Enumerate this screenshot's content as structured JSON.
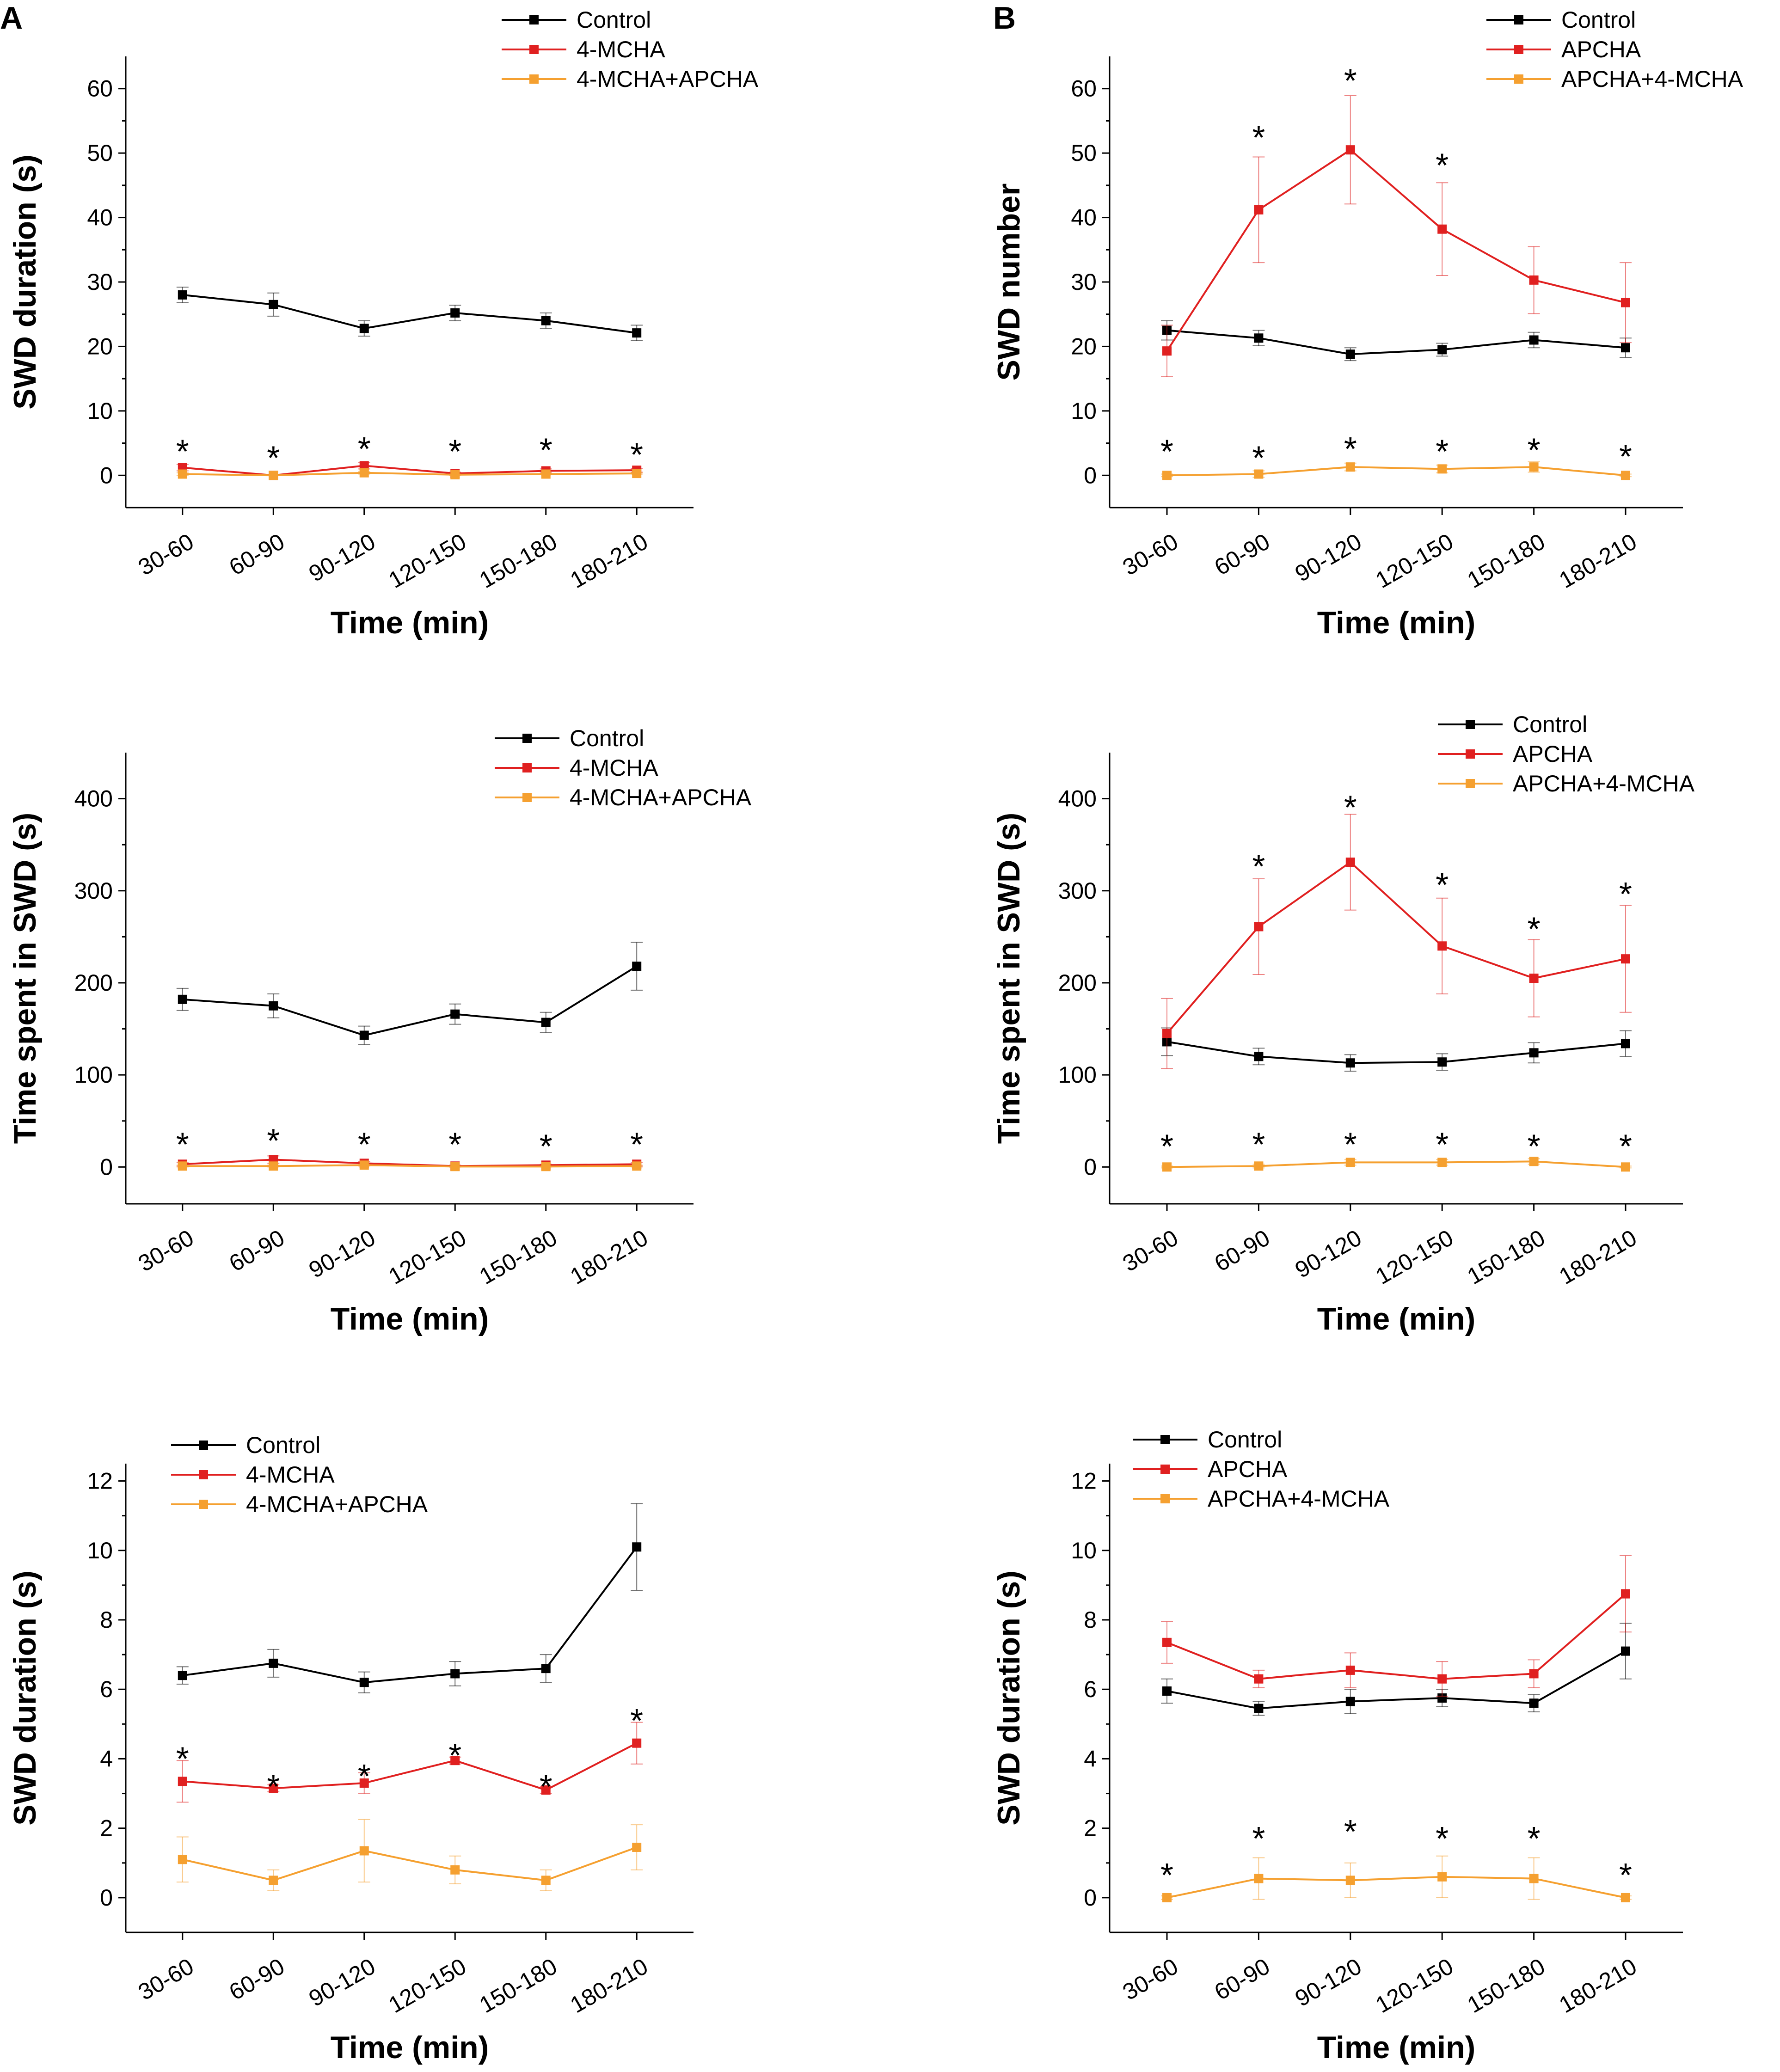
{
  "panel_labels": [
    "A",
    "B"
  ],
  "colors": {
    "control": "#000000",
    "red": "#e02020",
    "orange": "#f5a030"
  },
  "chart_data": [
    {
      "type": "line",
      "panel": "A",
      "title": "",
      "xlabel": "Time (min)",
      "ylabel": "SWD duration (s)",
      "categories": [
        "30-60",
        "60-90",
        "90-120",
        "120-150",
        "150-180",
        "180-210"
      ],
      "ylim": [
        -5,
        65
      ],
      "yticks": [
        0,
        10,
        20,
        30,
        40,
        50,
        60
      ],
      "series": [
        {
          "name": "Control",
          "color": "#000000",
          "values": [
            28,
            26.5,
            22.8,
            25.2,
            24,
            22.1
          ],
          "errors": [
            1.2,
            1.8,
            1.2,
            1.2,
            1.2,
            1.2
          ]
        },
        {
          "name": "4-MCHA",
          "color": "#e02020",
          "values": [
            1.2,
            0,
            1.5,
            0.3,
            0.7,
            0.8
          ],
          "errors": [
            0.5,
            0,
            0.5,
            0.2,
            0.3,
            0.3
          ]
        },
        {
          "name": "4-MCHA+APCHA",
          "color": "#f5a030",
          "values": [
            0.2,
            0,
            0.4,
            0.1,
            0.2,
            0.3
          ],
          "errors": [
            0.2,
            0,
            0.2,
            0.1,
            0.1,
            0.1
          ]
        }
      ],
      "annotations": [
        {
          "text": "*",
          "x": 0,
          "y": 4.8
        },
        {
          "text": "*",
          "x": 1,
          "y": 3.8
        },
        {
          "text": "*",
          "x": 2,
          "y": 5.2
        },
        {
          "text": "*",
          "x": 3,
          "y": 4.8
        },
        {
          "text": "*",
          "x": 4,
          "y": 5.0
        },
        {
          "text": "*",
          "x": 5,
          "y": 4.3
        }
      ]
    },
    {
      "type": "line",
      "panel": "B",
      "title": "",
      "xlabel": "Time (min)",
      "ylabel": "SWD number",
      "categories": [
        "30-60",
        "60-90",
        "90-120",
        "120-150",
        "150-180",
        "180-210"
      ],
      "ylim": [
        -5,
        65
      ],
      "yticks": [
        0,
        10,
        20,
        30,
        40,
        50,
        60
      ],
      "series": [
        {
          "name": "Control",
          "color": "#000000",
          "values": [
            22.5,
            21.3,
            18.8,
            19.5,
            21,
            19.8
          ],
          "errors": [
            1.5,
            1.2,
            1,
            1,
            1.2,
            1.5
          ]
        },
        {
          "name": "APCHA",
          "color": "#e02020",
          "values": [
            19.3,
            41.2,
            50.5,
            38.2,
            30.3,
            26.8
          ],
          "errors": [
            4,
            8.2,
            8.4,
            7.2,
            5.2,
            6.2
          ]
        },
        {
          "name": "APCHA+4-MCHA",
          "color": "#f5a030",
          "values": [
            0,
            0.2,
            1.3,
            1,
            1.3,
            0
          ],
          "errors": [
            0.2,
            0.5,
            0.6,
            0.6,
            0.8,
            0.2
          ]
        }
      ],
      "annotations": [
        {
          "text": "*",
          "x": 0,
          "y": 4.8
        },
        {
          "text": "*",
          "x": 1,
          "y": 3.8
        },
        {
          "text": "*",
          "x": 2,
          "y": 5.2
        },
        {
          "text": "*",
          "x": 3,
          "y": 4.8
        },
        {
          "text": "*",
          "x": 4,
          "y": 5.0
        },
        {
          "text": "*",
          "x": 5,
          "y": 4.0
        },
        {
          "text": "*",
          "x": 1,
          "y": 53.5
        },
        {
          "text": "*",
          "x": 2,
          "y": 62.3
        },
        {
          "text": "*",
          "x": 3,
          "y": 49.2
        }
      ]
    },
    {
      "type": "line",
      "panel": "A",
      "title": "",
      "xlabel": "Time (min)",
      "ylabel": "Time spent in SWD (s)",
      "categories": [
        "30-60",
        "60-90",
        "90-120",
        "120-150",
        "150-180",
        "180-210"
      ],
      "ylim": [
        -40,
        450
      ],
      "yticks": [
        0,
        100,
        200,
        300,
        400
      ],
      "series": [
        {
          "name": "Control",
          "color": "#000000",
          "values": [
            182,
            175,
            143,
            166,
            157,
            218
          ],
          "errors": [
            12,
            13,
            10,
            11,
            11,
            26
          ]
        },
        {
          "name": "4-MCHA",
          "color": "#e02020",
          "values": [
            3,
            8,
            4,
            1,
            2,
            3
          ],
          "errors": [
            2,
            4,
            2,
            1,
            1,
            2
          ]
        },
        {
          "name": "4-MCHA+APCHA",
          "color": "#f5a030",
          "values": [
            1,
            1,
            2,
            0.5,
            0.5,
            1
          ],
          "errors": [
            1,
            1,
            1,
            0.5,
            0.5,
            1
          ]
        }
      ],
      "annotations": [
        {
          "text": "*",
          "x": 0,
          "y": 32
        },
        {
          "text": "*",
          "x": 1,
          "y": 36
        },
        {
          "text": "*",
          "x": 2,
          "y": 32
        },
        {
          "text": "*",
          "x": 3,
          "y": 32
        },
        {
          "text": "*",
          "x": 4,
          "y": 30
        },
        {
          "text": "*",
          "x": 5,
          "y": 32
        }
      ]
    },
    {
      "type": "line",
      "panel": "B",
      "title": "",
      "xlabel": "Time (min)",
      "ylabel": "Time spent in SWD (s)",
      "categories": [
        "30-60",
        "60-90",
        "90-120",
        "120-150",
        "150-180",
        "180-210"
      ],
      "ylim": [
        -40,
        450
      ],
      "yticks": [
        0,
        100,
        200,
        300,
        400
      ],
      "series": [
        {
          "name": "Control",
          "color": "#000000",
          "values": [
            136,
            120,
            113,
            114,
            124,
            134
          ],
          "errors": [
            15,
            9,
            9,
            9,
            11,
            14
          ]
        },
        {
          "name": "APCHA",
          "color": "#e02020",
          "values": [
            145,
            261,
            331,
            240,
            205,
            226
          ],
          "errors": [
            38,
            52,
            52,
            52,
            42,
            58
          ]
        },
        {
          "name": "APCHA+4-MCHA",
          "color": "#f5a030",
          "values": [
            0,
            1,
            5,
            5,
            6,
            0
          ],
          "errors": [
            1,
            2,
            3,
            3,
            3,
            1
          ]
        }
      ],
      "annotations": [
        {
          "text": "*",
          "x": 0,
          "y": 30
        },
        {
          "text": "*",
          "x": 1,
          "y": 32
        },
        {
          "text": "*",
          "x": 2,
          "y": 32
        },
        {
          "text": "*",
          "x": 3,
          "y": 32
        },
        {
          "text": "*",
          "x": 4,
          "y": 30
        },
        {
          "text": "*",
          "x": 5,
          "y": 30
        },
        {
          "text": "*",
          "x": 1,
          "y": 334
        },
        {
          "text": "*",
          "x": 2,
          "y": 398
        },
        {
          "text": "*",
          "x": 3,
          "y": 314
        },
        {
          "text": "*",
          "x": 4,
          "y": 266
        },
        {
          "text": "*",
          "x": 5,
          "y": 304
        }
      ]
    },
    {
      "type": "line",
      "panel": "A",
      "title": "",
      "xlabel": "Time (min)",
      "ylabel": "SWD duration (s)",
      "categories": [
        "30-60",
        "60-90",
        "90-120",
        "120-150",
        "150-180",
        "180-210"
      ],
      "ylim": [
        -1,
        12.5
      ],
      "yticks": [
        0,
        2,
        4,
        6,
        8,
        10,
        12
      ],
      "series": [
        {
          "name": "Control",
          "color": "#000000",
          "values": [
            6.4,
            6.75,
            6.2,
            6.45,
            6.6,
            10.1
          ],
          "errors": [
            0.25,
            0.4,
            0.3,
            0.35,
            0.4,
            1.25
          ]
        },
        {
          "name": "4-MCHA",
          "color": "#e02020",
          "values": [
            3.35,
            3.15,
            3.3,
            3.95,
            3.1,
            4.45
          ],
          "errors": [
            0.6,
            0.1,
            0.3,
            0.1,
            0.1,
            0.6
          ]
        },
        {
          "name": "4-MCHA+APCHA",
          "color": "#f5a030",
          "values": [
            1.1,
            0.5,
            1.35,
            0.8,
            0.5,
            1.45
          ],
          "errors": [
            0.65,
            0.3,
            0.9,
            0.4,
            0.3,
            0.65
          ]
        }
      ],
      "annotations": [
        {
          "text": "*",
          "x": 0,
          "y": 4.2
        },
        {
          "text": "*",
          "x": 1,
          "y": 3.4
        },
        {
          "text": "*",
          "x": 2,
          "y": 3.7
        },
        {
          "text": "*",
          "x": 3,
          "y": 4.3
        },
        {
          "text": "*",
          "x": 4,
          "y": 3.4
        },
        {
          "text": "*",
          "x": 5,
          "y": 5.3
        }
      ]
    },
    {
      "type": "line",
      "panel": "B",
      "title": "",
      "xlabel": "Time (min)",
      "ylabel": "SWD duration (s)",
      "categories": [
        "30-60",
        "60-90",
        "90-120",
        "120-150",
        "150-180",
        "180-210"
      ],
      "ylim": [
        -1,
        12.5
      ],
      "yticks": [
        0,
        2,
        4,
        6,
        8,
        10,
        12
      ],
      "series": [
        {
          "name": "Control",
          "color": "#000000",
          "values": [
            5.95,
            5.45,
            5.65,
            5.75,
            5.6,
            7.1
          ],
          "errors": [
            0.35,
            0.2,
            0.35,
            0.25,
            0.25,
            0.8
          ]
        },
        {
          "name": "APCHA",
          "color": "#e02020",
          "values": [
            7.35,
            6.3,
            6.55,
            6.3,
            6.45,
            8.75
          ],
          "errors": [
            0.6,
            0.25,
            0.5,
            0.5,
            0.4,
            1.1
          ]
        },
        {
          "name": "APCHA+4-MCHA",
          "color": "#f5a030",
          "values": [
            0,
            0.55,
            0.5,
            0.6,
            0.55,
            0
          ],
          "errors": [
            0.05,
            0.6,
            0.5,
            0.6,
            0.6,
            0.05
          ]
        }
      ],
      "annotations": [
        {
          "text": "*",
          "x": 0,
          "y": 0.85
        },
        {
          "text": "*",
          "x": 1,
          "y": 1.9
        },
        {
          "text": "*",
          "x": 2,
          "y": 2.1
        },
        {
          "text": "*",
          "x": 3,
          "y": 1.9
        },
        {
          "text": "*",
          "x": 4,
          "y": 1.9
        },
        {
          "text": "*",
          "x": 5,
          "y": 0.85
        }
      ]
    }
  ]
}
